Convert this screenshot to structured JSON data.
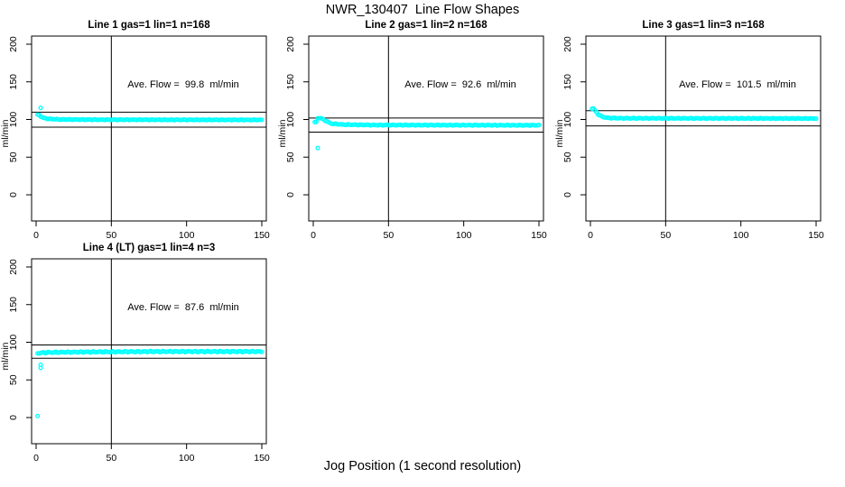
{
  "page": {
    "title": "NWR_130407  Line Flow Shapes",
    "xlabel": "Jog Position (1 second resolution)",
    "background": "#ffffff"
  },
  "style": {
    "point_color": "#00ffff",
    "axis_color": "#000000",
    "point_radius": 1.9
  },
  "axes": {
    "x_ticks": [
      0,
      50,
      100,
      150
    ],
    "y_ticks": [
      0,
      50,
      100,
      150,
      200
    ],
    "ylabel": "ml/min",
    "xlim": [
      0,
      150
    ],
    "ylim": [
      -38,
      212
    ],
    "grid": false
  },
  "chart_data": [
    {
      "type": "scatter",
      "title": "Line 1 gas=1 lin=1 n=168",
      "n": 168,
      "ave_flow": 99.8,
      "ave_flow_label": "Ave. Flow =  99.8  ml/min",
      "ref_lines": [
        109.8,
        89.8
      ],
      "vline_x": 50,
      "series_keypoints": [
        [
          2,
          106
        ],
        [
          3,
          104
        ],
        [
          5,
          102
        ],
        [
          8,
          100.8
        ],
        [
          15,
          100.1
        ],
        [
          40,
          99.7
        ],
        [
          150,
          99.4
        ]
      ],
      "outliers": [
        [
          3,
          115.5
        ]
      ],
      "jitter": 0.6
    },
    {
      "type": "scatter",
      "title": "Line 2 gas=1 lin=2 n=168",
      "n": 168,
      "ave_flow": 92.6,
      "ave_flow_label": "Ave. Flow =  92.6  ml/min",
      "ref_lines": [
        101.9,
        83.3
      ],
      "vline_x": 50,
      "series_keypoints": [
        [
          2,
          96.5
        ],
        [
          3,
          101.5
        ],
        [
          5,
          102
        ],
        [
          7,
          99.5
        ],
        [
          12,
          94.5
        ],
        [
          20,
          93.2
        ],
        [
          40,
          92.6
        ],
        [
          150,
          92.3
        ]
      ],
      "outliers": [
        [
          3,
          62
        ]
      ],
      "jitter": 0.6
    },
    {
      "type": "scatter",
      "title": "Line 3 gas=1 lin=3 n=168",
      "n": 168,
      "ave_flow": 101.5,
      "ave_flow_label": "Ave. Flow =  101.5  ml/min",
      "ref_lines": [
        111.7,
        91.4
      ],
      "vline_x": 50,
      "series_keypoints": [
        [
          2,
          114.5
        ],
        [
          3,
          112
        ],
        [
          5,
          107
        ],
        [
          8,
          103.5
        ],
        [
          12,
          102
        ],
        [
          20,
          101.6
        ],
        [
          150,
          101.3
        ]
      ],
      "outliers": [],
      "jitter": 0.6
    },
    {
      "type": "scatter",
      "title": "Line 4 (LT) gas=1 lin=4 n=3",
      "n": 3,
      "ave_flow": 87.6,
      "ave_flow_label": "Ave. Flow =  87.6  ml/min",
      "ref_lines": [
        96.4,
        78.8
      ],
      "vline_x": 50,
      "series_keypoints": [
        [
          2,
          85.5
        ],
        [
          4,
          86
        ],
        [
          10,
          86.5
        ],
        [
          30,
          87
        ],
        [
          80,
          87.6
        ],
        [
          150,
          87.6
        ]
      ],
      "outliers": [
        [
          1,
          2
        ],
        [
          3,
          70
        ],
        [
          3,
          66
        ]
      ],
      "jitter": 1.0
    }
  ]
}
